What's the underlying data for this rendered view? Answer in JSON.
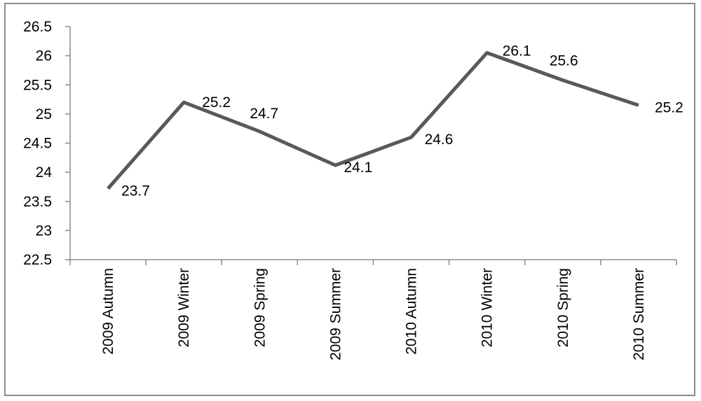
{
  "chart_data": {
    "type": "line",
    "title": "",
    "xlabel": "",
    "ylabel": "",
    "categories": [
      "2009 Autumn",
      "2009 Winter",
      "2009 Spring",
      "2009 Summer",
      "2010 Autumn",
      "2010 Winter",
      "2010 Spring",
      "2010 Summer"
    ],
    "series": [
      {
        "values": [
          23.72,
          25.2,
          24.7,
          24.12,
          24.6,
          26.05,
          25.58,
          25.15
        ],
        "data_labels": [
          "23.7",
          "25.2",
          "24.7",
          "24.1",
          "24.6",
          "26.1",
          "25.6",
          "25.2"
        ],
        "color": "#595959"
      }
    ],
    "ylim": [
      22.5,
      26.5
    ],
    "y_ticks": [
      "22.5",
      "23",
      "23.5",
      "24",
      "24.5",
      "25",
      "25.5",
      "26",
      "26.5"
    ],
    "grid": false,
    "legend": "none"
  }
}
